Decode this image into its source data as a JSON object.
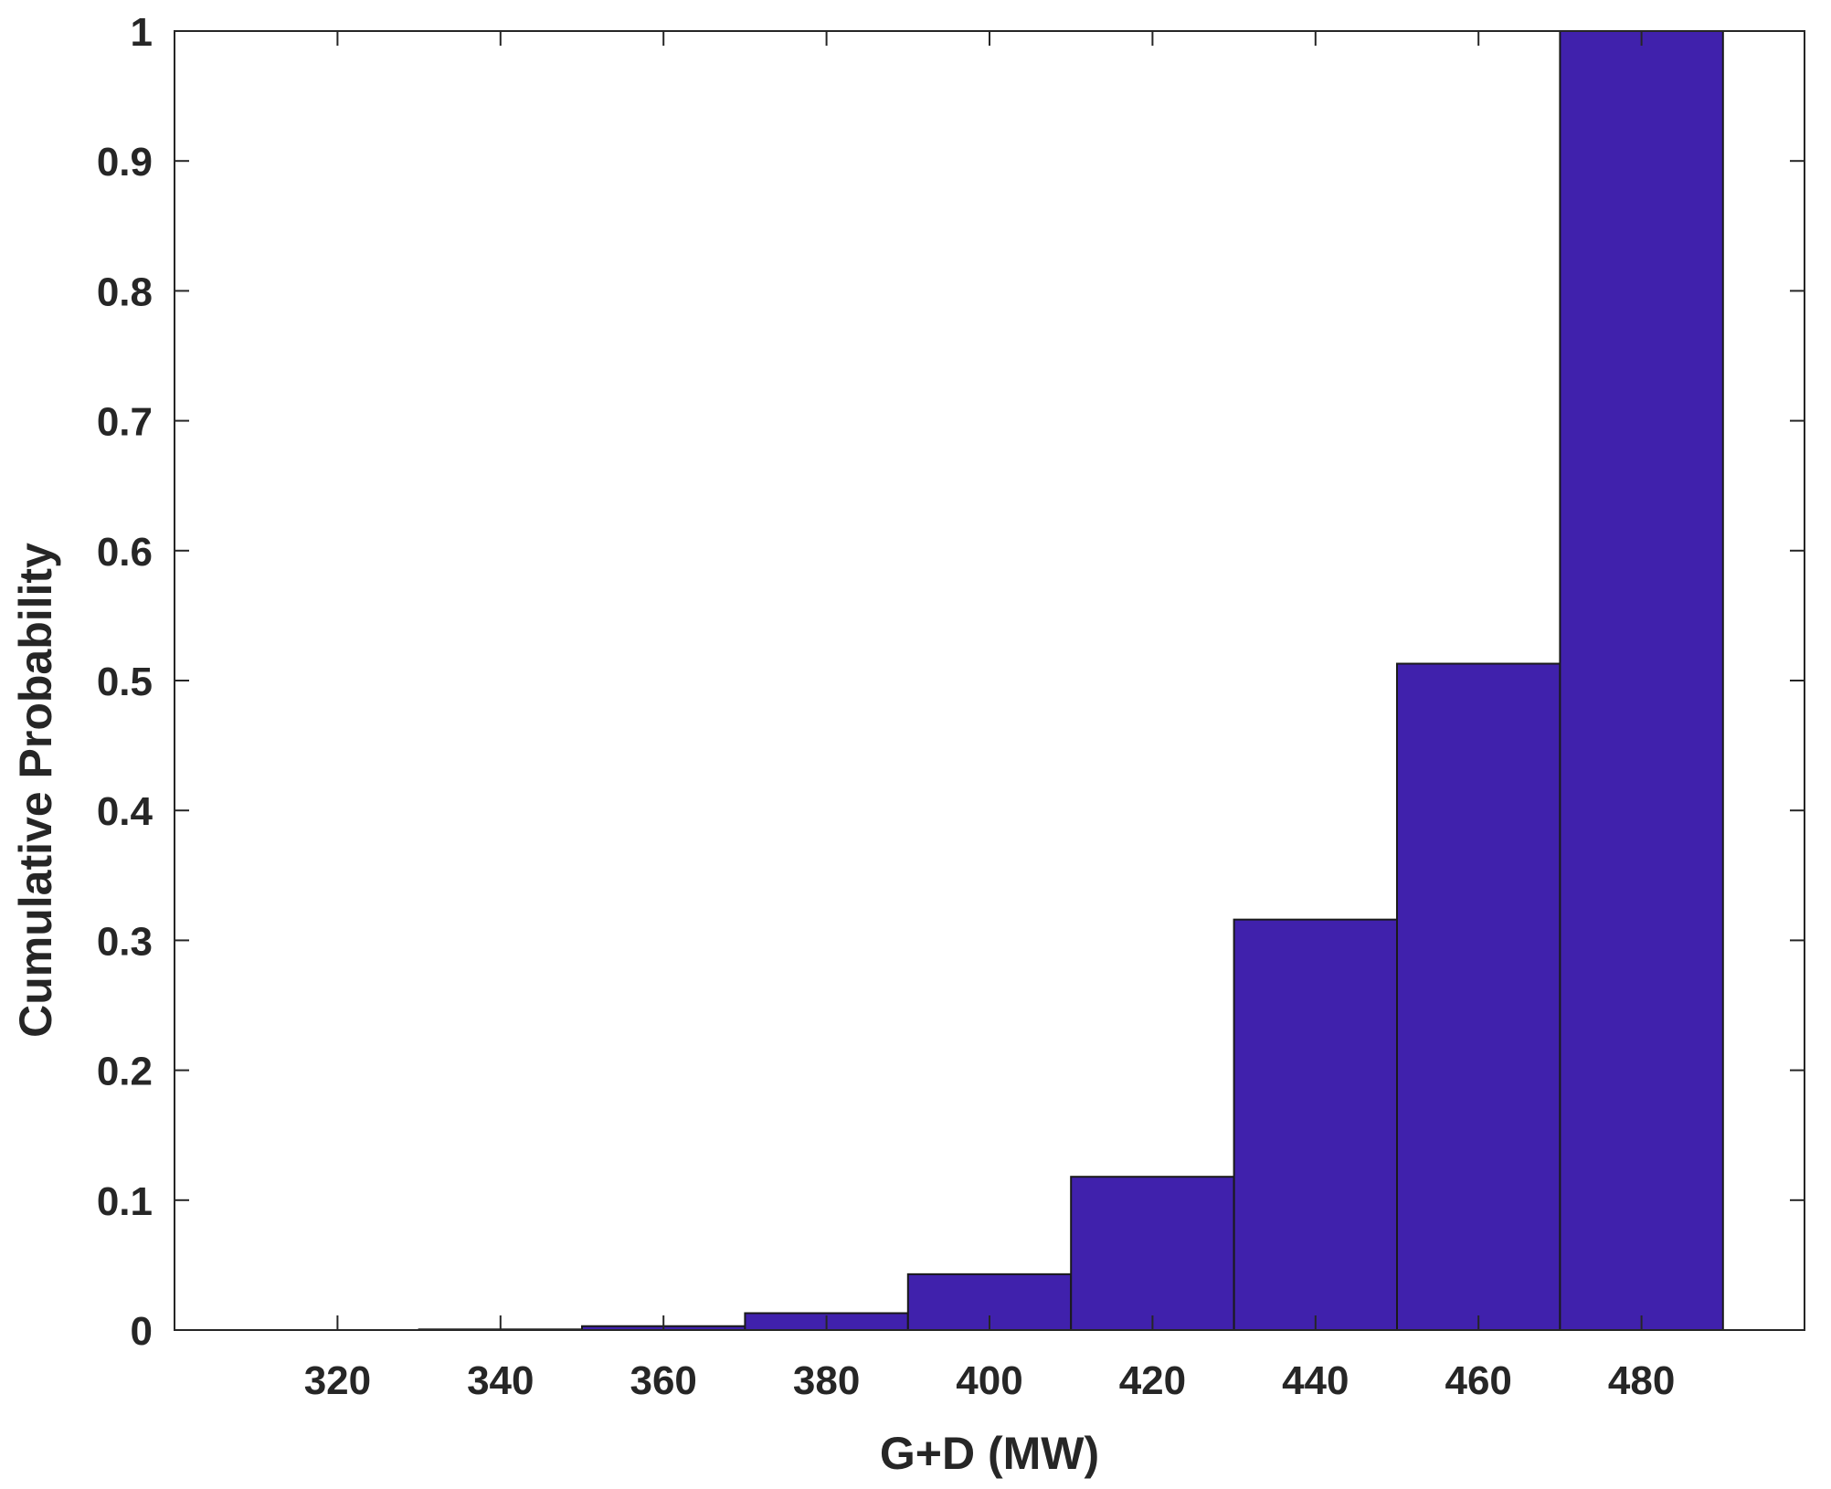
{
  "chart_data": {
    "type": "bar",
    "bar_color": "#4021AC",
    "edge_color": "#1a1a1a",
    "xlabel": "G+D (MW)",
    "ylabel": "Cumulative Probability",
    "xlim": [
      300,
      500
    ],
    "ylim": [
      0,
      1
    ],
    "xticks": [
      "320",
      "340",
      "360",
      "380",
      "400",
      "420",
      "440",
      "460",
      "480"
    ],
    "yticks": [
      "0",
      "0.1",
      "0.2",
      "0.3",
      "0.4",
      "0.5",
      "0.6",
      "0.7",
      "0.8",
      "0.9",
      "1"
    ],
    "bins": [
      {
        "x0": 310,
        "x1": 330,
        "value": 0.0
      },
      {
        "x0": 330,
        "x1": 350,
        "value": 0.0005
      },
      {
        "x0": 350,
        "x1": 370,
        "value": 0.003
      },
      {
        "x0": 370,
        "x1": 390,
        "value": 0.013
      },
      {
        "x0": 390,
        "x1": 410,
        "value": 0.043
      },
      {
        "x0": 410,
        "x1": 430,
        "value": 0.118
      },
      {
        "x0": 430,
        "x1": 450,
        "value": 0.316
      },
      {
        "x0": 450,
        "x1": 470,
        "value": 0.513
      },
      {
        "x0": 470,
        "x1": 490,
        "value": 1.0
      }
    ],
    "grid": false
  }
}
